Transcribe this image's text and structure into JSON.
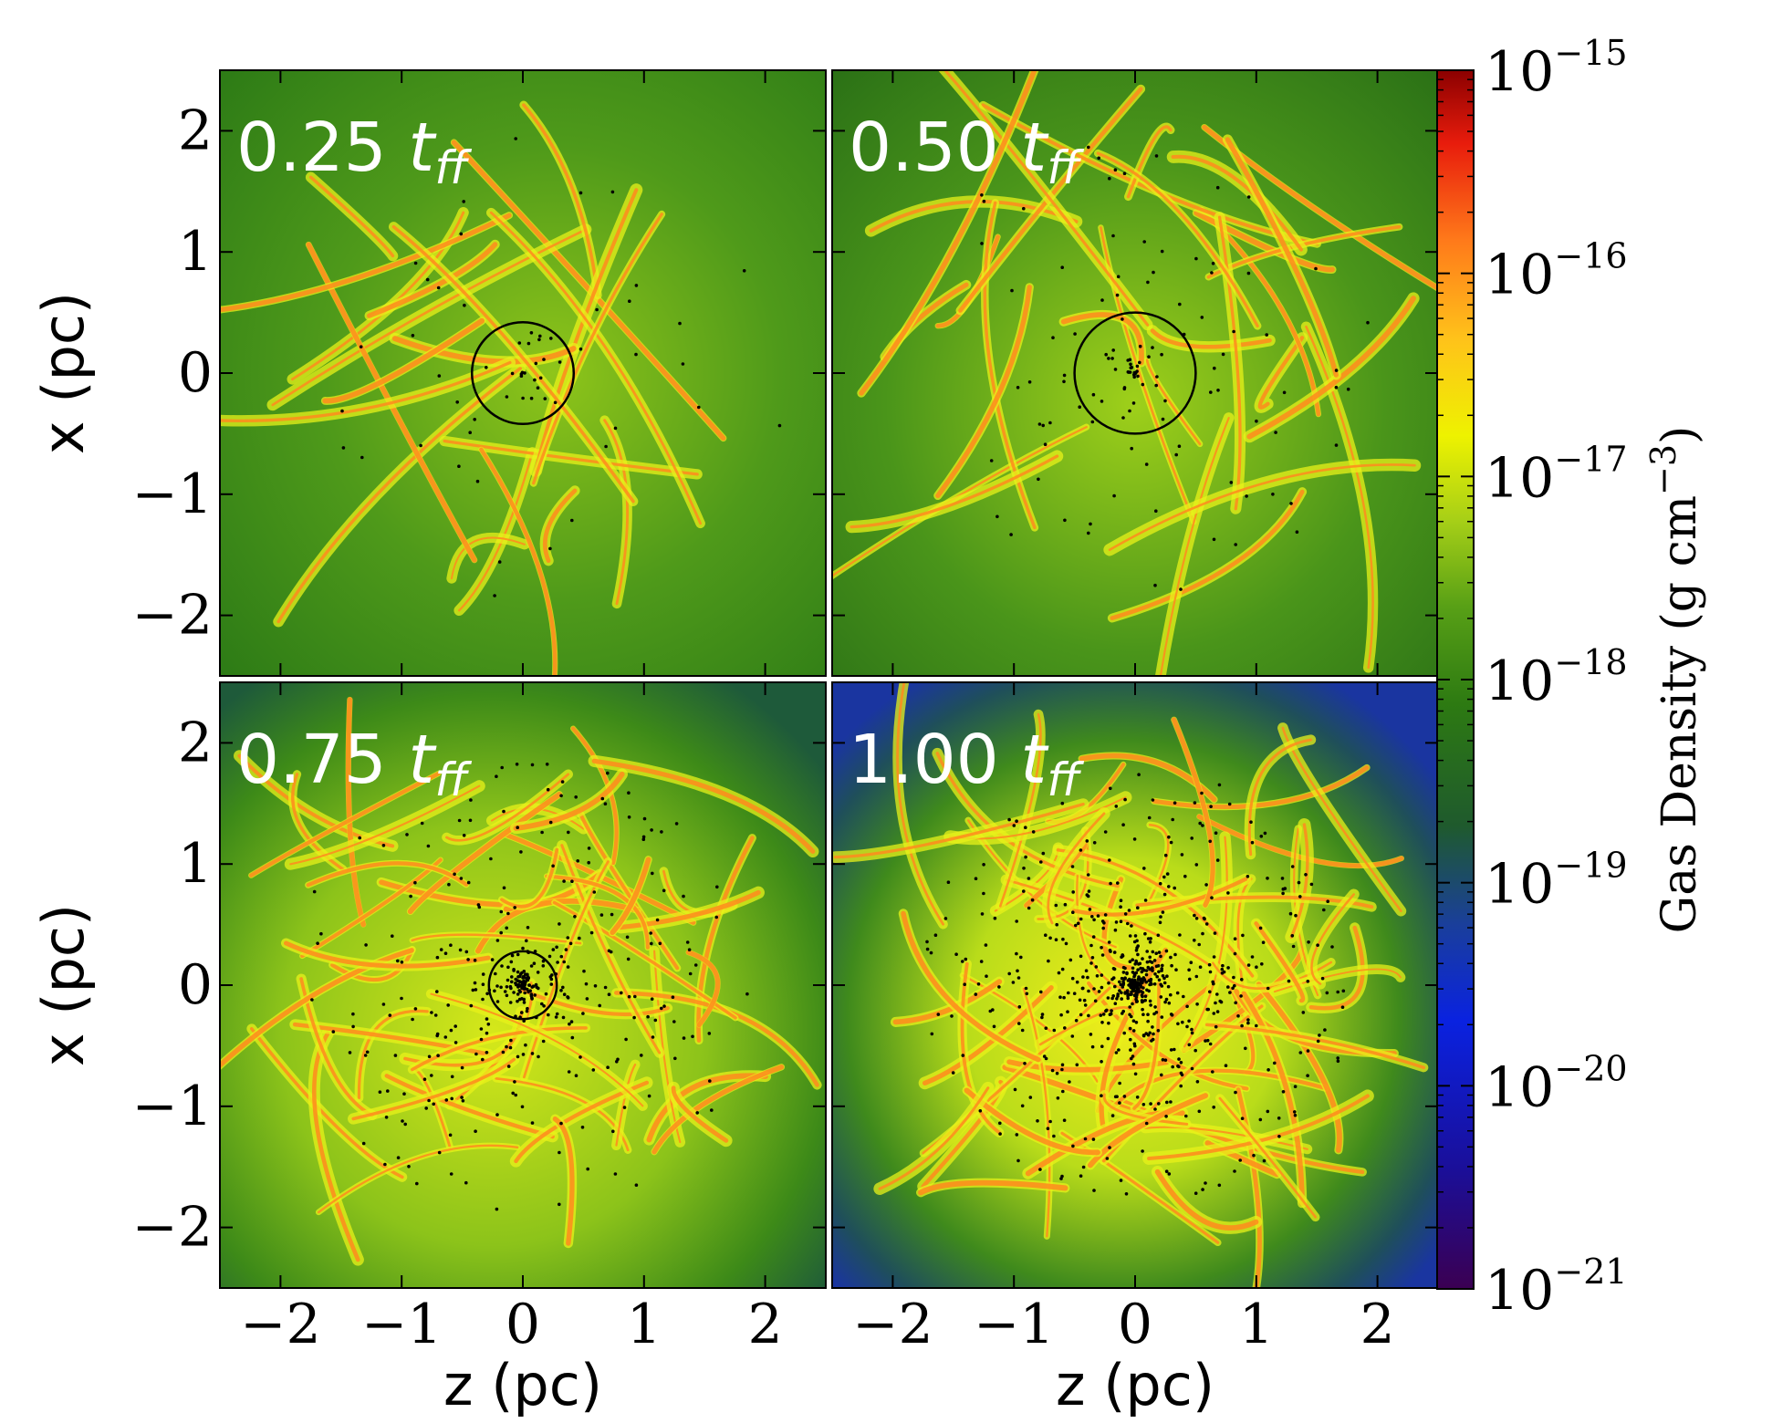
{
  "chart_data": {
    "type": "heatmap",
    "layout": "2x2 panels with shared colorbar",
    "panels": [
      {
        "label": "0.25",
        "label_sub": "ff",
        "label_var": "t",
        "circle_center": [
          0.0,
          0.0
        ],
        "circle_radius": 0.42,
        "sink_concentration": "low"
      },
      {
        "label": "0.50",
        "label_sub": "ff",
        "label_var": "t",
        "circle_center": [
          0.0,
          0.0
        ],
        "circle_radius": 0.5,
        "sink_concentration": "moderate"
      },
      {
        "label": "0.75",
        "label_sub": "ff",
        "label_var": "t",
        "circle_center": [
          0.0,
          0.0
        ],
        "circle_radius": 0.28,
        "sink_concentration": "high"
      },
      {
        "label": "1.00",
        "label_sub": "ff",
        "label_var": "t",
        "circle_center": null,
        "circle_radius": null,
        "sink_concentration": "very high"
      }
    ],
    "x_axis": {
      "label": "z  (pc)",
      "ticks": [
        -2,
        -1,
        0,
        1,
        2
      ],
      "tick_labels": [
        "−2",
        "−1",
        "0",
        "1",
        "2"
      ],
      "range": [
        -2.5,
        2.5
      ]
    },
    "y_axis": {
      "label": "x  (pc)",
      "ticks": [
        2,
        1,
        0,
        -1,
        -2
      ],
      "tick_labels": [
        "2",
        "1",
        "0",
        "−1",
        "−2"
      ],
      "range": [
        -2.5,
        2.5
      ]
    },
    "colorbar": {
      "label": "Gas Density (g cm",
      "label_exp": "−3",
      "label_close": ")",
      "scale": "log",
      "range": [
        1e-21,
        1e-15
      ],
      "ticks": [
        {
          "value": 1e-15,
          "base": "10",
          "exp": "−15"
        },
        {
          "value": 1e-16,
          "base": "10",
          "exp": "−16"
        },
        {
          "value": 1e-17,
          "base": "10",
          "exp": "−17"
        },
        {
          "value": 1e-18,
          "base": "10",
          "exp": "−18"
        },
        {
          "value": 1e-19,
          "base": "10",
          "exp": "−19"
        },
        {
          "value": 1e-20,
          "base": "10",
          "exp": "−20"
        },
        {
          "value": 1e-21,
          "base": "10",
          "exp": "−21"
        }
      ],
      "colormap": [
        "#3b0052",
        "#1a0f9a",
        "#0a22e0",
        "#1a3f9a",
        "#1f5a2d",
        "#2d7a12",
        "#58a016",
        "#a6cf17",
        "#eef200",
        "#ffc21a",
        "#ff7a1a",
        "#e81c0c",
        "#8b0000"
      ]
    }
  }
}
